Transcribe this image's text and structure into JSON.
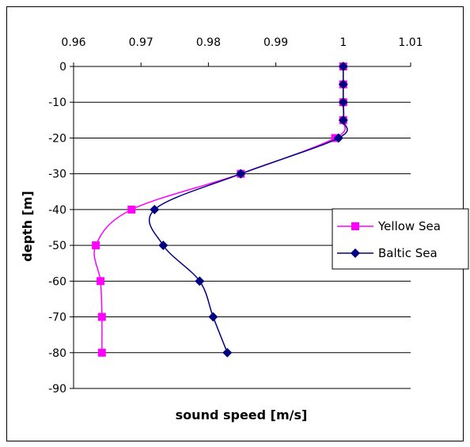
{
  "chart_data": {
    "type": "line",
    "title": "",
    "xlabel": "sound speed [m/s]",
    "ylabel": "depth [m]",
    "xlim": [
      0.96,
      1.01
    ],
    "ylim": [
      -90,
      0
    ],
    "x_ticks": [
      "0.96",
      "0.97",
      "0.98",
      "0.99",
      "1",
      "1.01"
    ],
    "y_ticks": [
      "0",
      "-10",
      "-20",
      "-30",
      "-40",
      "-50",
      "-60",
      "-70",
      "-80",
      "-90"
    ],
    "x_axis_position": "top",
    "grid": "horizontal",
    "legend_position": "right",
    "series": [
      {
        "name": "Yellow Sea",
        "color": "#ff00ff",
        "marker": "square",
        "points": [
          {
            "x": 1.0,
            "y": 0
          },
          {
            "x": 1.0,
            "y": -5
          },
          {
            "x": 1.0,
            "y": -10
          },
          {
            "x": 1.0,
            "y": -15
          },
          {
            "x": 0.9988,
            "y": -20
          },
          {
            "x": 0.9848,
            "y": -30
          },
          {
            "x": 0.9686,
            "y": -40
          },
          {
            "x": 0.9633,
            "y": -50
          },
          {
            "x": 0.964,
            "y": -60
          },
          {
            "x": 0.9642,
            "y": -70
          },
          {
            "x": 0.9642,
            "y": -80
          }
        ]
      },
      {
        "name": "Baltic Sea",
        "color": "#000080",
        "marker": "diamond",
        "points": [
          {
            "x": 1.0,
            "y": 0
          },
          {
            "x": 1.0,
            "y": -5
          },
          {
            "x": 1.0,
            "y": -10
          },
          {
            "x": 1.0,
            "y": -15
          },
          {
            "x": 0.9993,
            "y": -20
          },
          {
            "x": 0.9848,
            "y": -30
          },
          {
            "x": 0.972,
            "y": -40
          },
          {
            "x": 0.9733,
            "y": -50
          },
          {
            "x": 0.9787,
            "y": -60
          },
          {
            "x": 0.9807,
            "y": -70
          },
          {
            "x": 0.9828,
            "y": -80
          }
        ]
      }
    ]
  }
}
